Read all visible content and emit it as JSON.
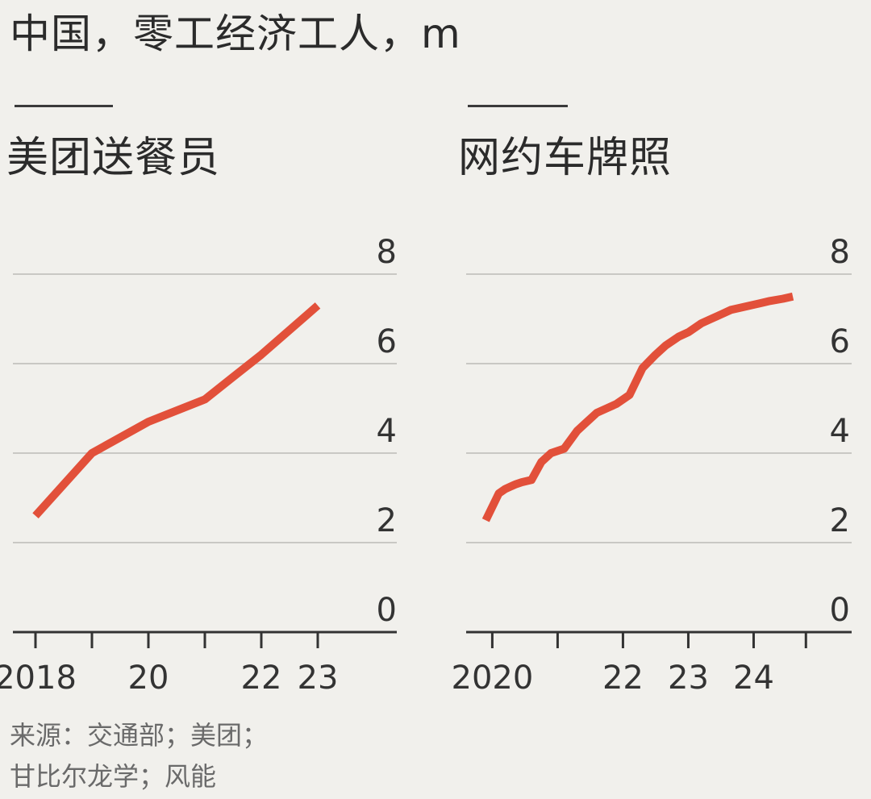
{
  "title": "中国，零工经济工人，m",
  "source_line1": "来源：交通部；美团；",
  "source_line2": "甘比尔龙学；风能",
  "colors": {
    "line": "#e2503a",
    "grid": "#c9c8c4",
    "axis": "#333333"
  },
  "chart_data": [
    {
      "type": "line",
      "title": "美团送餐员",
      "x": [
        2018,
        2019,
        2020,
        2021,
        2021.5,
        2022,
        2023
      ],
      "y": [
        2.6,
        4.0,
        4.7,
        5.2,
        5.7,
        6.2,
        7.3
      ],
      "ylim": [
        0,
        8
      ],
      "yticks": [
        0,
        2,
        4,
        6,
        8
      ],
      "xticks": [
        2018,
        2019,
        2020,
        2021,
        2022,
        2023
      ],
      "xticklabels": [
        "2018",
        "",
        "20",
        "",
        "22",
        "23"
      ],
      "xlim": [
        2017.6,
        2024.4
      ]
    },
    {
      "type": "line",
      "title": "网约车牌照",
      "x": [
        2019.9,
        2020.1,
        2020.2,
        2020.35,
        2020.45,
        2020.6,
        2020.75,
        2020.9,
        2021.1,
        2021.3,
        2021.45,
        2021.6,
        2021.75,
        2021.9,
        2022.1,
        2022.3,
        2022.5,
        2022.65,
        2022.85,
        2023.0,
        2023.2,
        2023.35,
        2023.5,
        2023.65,
        2023.8,
        2023.95,
        2024.1,
        2024.25,
        2024.45,
        2024.6
      ],
      "y": [
        2.5,
        3.1,
        3.2,
        3.3,
        3.35,
        3.4,
        3.8,
        4.0,
        4.1,
        4.5,
        4.7,
        4.9,
        5.0,
        5.1,
        5.3,
        5.9,
        6.2,
        6.4,
        6.6,
        6.7,
        6.9,
        7.0,
        7.1,
        7.2,
        7.25,
        7.3,
        7.35,
        7.4,
        7.45,
        7.5
      ],
      "ylim": [
        0,
        8
      ],
      "yticks": [
        0,
        2,
        4,
        6,
        8
      ],
      "xticks": [
        2020,
        2021,
        2022,
        2023,
        2024,
        2024.8
      ],
      "xticklabels": [
        "2020",
        "",
        "22",
        "23",
        "24",
        ""
      ],
      "xlim": [
        2019.6,
        2025.5
      ]
    }
  ]
}
